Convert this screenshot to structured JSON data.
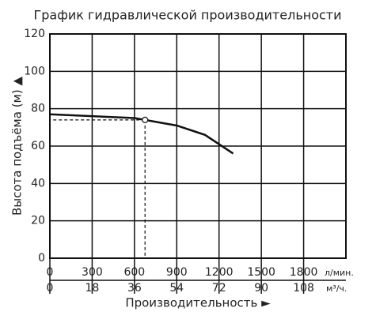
{
  "chart_data": {
    "type": "line",
    "title": "График гидравлической производительности",
    "y_label": "Высота подъёма (м) ▲",
    "x_label": "Производительность ►",
    "x_unit": "л/мин.",
    "x2_unit": "м³/ч.",
    "x": [
      0,
      300,
      600,
      675,
      900,
      1100,
      1300
    ],
    "series": [
      {
        "color": "#111111",
        "values": [
          77,
          76,
          75,
          74,
          71,
          66,
          56
        ]
      }
    ],
    "point": {
      "x": 675,
      "y": 74
    },
    "xlim": [
      0,
      2100
    ],
    "xticks": [
      0,
      300,
      600,
      900,
      1200,
      1500,
      1800
    ],
    "x2lim": [
      0,
      126
    ],
    "x2ticks": [
      0,
      18,
      36,
      54,
      72,
      90,
      108
    ],
    "ylim": [
      0,
      120
    ],
    "yticks": [
      0,
      20,
      40,
      60,
      80,
      100,
      120
    ],
    "grid": true
  }
}
